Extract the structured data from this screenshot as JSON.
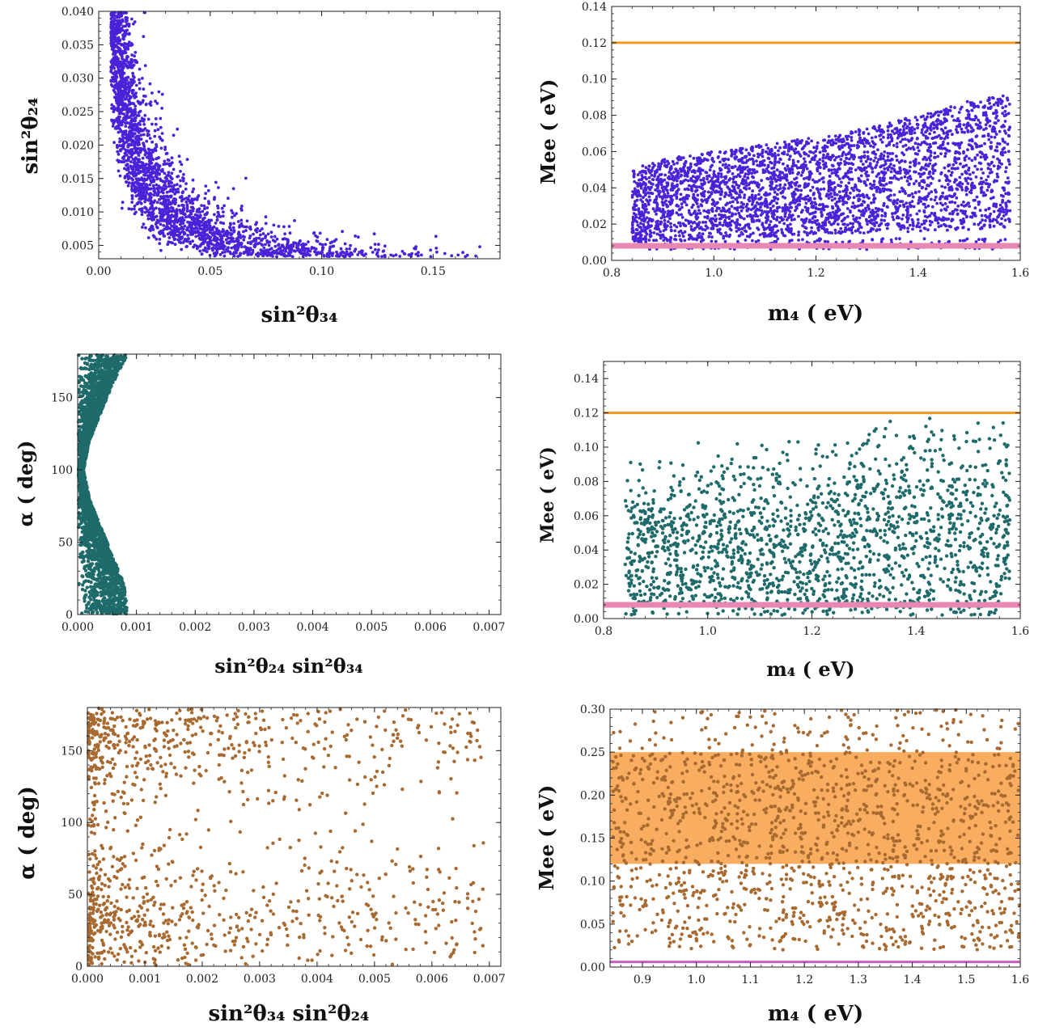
{
  "colors": {
    "blue": "#4a22d8",
    "teal": "#1f6b6b",
    "brown": "#a86a30",
    "orange": "#f39a22",
    "orange_band": "#f8ad60",
    "pink": "#e987b3",
    "magenta": "#c75cc3"
  },
  "chart_data": [
    {
      "type": "scatter",
      "title": "",
      "xlabel": "sin²θ₃₄",
      "ylabel": "sin²θ₂₄",
      "xlim": [
        0,
        0.18
      ],
      "ylim": [
        0.003,
        0.04
      ],
      "xticks": [
        0,
        0.05,
        0.1,
        0.15
      ],
      "xtick_labels": [
        "0.00",
        "0.05",
        "0.10",
        "0.15"
      ],
      "yticks": [
        0.005,
        0.01,
        0.015,
        0.02,
        0.025,
        0.03,
        0.035,
        0.04
      ],
      "ytick_labels": [
        "0.005",
        "0.010",
        "0.015",
        "0.020",
        "0.025",
        "0.030",
        "0.035",
        "0.040"
      ],
      "grid": false,
      "point_color": "#4a22d8",
      "n_points": 3800,
      "trend": "hyperbola: sin²θ₂₄ × sin²θ₃₄ ≈ 0.0002–0.0008, from (0.005, 0.04) down to (0.18, 0.004)",
      "x": [
        0.008,
        0.01,
        0.012,
        0.015,
        0.02,
        0.025,
        0.03,
        0.04,
        0.05,
        0.06,
        0.08,
        0.1,
        0.12,
        0.15,
        0.17
      ],
      "y": [
        0.038,
        0.033,
        0.028,
        0.024,
        0.02,
        0.017,
        0.014,
        0.011,
        0.009,
        0.008,
        0.006,
        0.0055,
        0.005,
        0.0045,
        0.004
      ]
    },
    {
      "type": "scatter",
      "title": "",
      "xlabel": "m₄ ( eV)",
      "ylabel": "Mee ( eV)",
      "xlim": [
        0.8,
        1.6
      ],
      "ylim": [
        0,
        0.14
      ],
      "xticks": [
        0.8,
        1.0,
        1.2,
        1.4,
        1.6
      ],
      "xtick_labels": [
        "0.8",
        "1.0",
        "1.2",
        "1.4",
        "1.6"
      ],
      "yticks": [
        0,
        0.02,
        0.04,
        0.06,
        0.08,
        0.1,
        0.12,
        0.14
      ],
      "ytick_labels": [
        "0.00",
        "0.02",
        "0.04",
        "0.06",
        "0.08",
        "0.10",
        "0.12",
        "0.14"
      ],
      "grid": false,
      "point_color": "#4a22d8",
      "n_points": 3500,
      "hlines": [
        {
          "y": 0.12,
          "color": "#f39a22"
        },
        {
          "y": 0.008,
          "color": "#e987b3"
        }
      ],
      "trend": "filled wedge from m4 = 0.84 to 1.58; lower edge ≈ 0.01–0.02, upper edge rising from 0.05 to 0.09",
      "x": [
        0.84,
        0.9,
        1.0,
        1.1,
        1.2,
        1.3,
        1.4,
        1.5,
        1.58
      ],
      "y_max": [
        0.05,
        0.056,
        0.06,
        0.064,
        0.068,
        0.073,
        0.08,
        0.088,
        0.092
      ],
      "y_min": [
        0.01,
        0.01,
        0.012,
        0.013,
        0.014,
        0.015,
        0.016,
        0.017,
        0.018
      ]
    },
    {
      "type": "scatter",
      "title": "",
      "xlabel": "sin²θ₂₄ sin²θ₃₄",
      "ylabel": "α ( deg)",
      "xlim": [
        0,
        0.0072
      ],
      "ylim": [
        0,
        180
      ],
      "xticks": [
        0,
        0.001,
        0.002,
        0.003,
        0.004,
        0.005,
        0.006,
        0.007
      ],
      "xtick_labels": [
        "0.000",
        "0.001",
        "0.002",
        "0.003",
        "0.004",
        "0.005",
        "0.006",
        "0.007"
      ],
      "yticks": [
        0,
        50,
        100,
        150
      ],
      "ytick_labels": [
        "0",
        "50",
        "100",
        "150"
      ],
      "grid": false,
      "point_color": "#1f6b6b",
      "n_points": 2800,
      "trend": "narrow band near x = 0; max x ≈ 0.0009 at α = 0 and 180, min x ≈ 0.00005 near α = 100",
      "alpha": [
        0,
        20,
        40,
        60,
        80,
        100,
        120,
        140,
        160,
        180
      ],
      "x_max": [
        0.00085,
        0.0008,
        0.0006,
        0.0004,
        0.0002,
        0.0001,
        0.0002,
        0.0004,
        0.0006,
        0.00085
      ]
    },
    {
      "type": "scatter",
      "title": "",
      "xlabel": "m₄ ( eV)",
      "ylabel": "Mee ( eV)",
      "xlim": [
        0.8,
        1.6
      ],
      "ylim": [
        0,
        0.15
      ],
      "xticks": [
        0.8,
        1.0,
        1.2,
        1.4,
        1.6
      ],
      "xtick_labels": [
        "0.8",
        "1.0",
        "1.2",
        "1.4",
        "1.6"
      ],
      "yticks": [
        0,
        0.02,
        0.04,
        0.06,
        0.08,
        0.1,
        0.12,
        0.14
      ],
      "ytick_labels": [
        "0.00",
        "0.02",
        "0.04",
        "0.06",
        "0.08",
        "0.10",
        "0.12",
        "0.14"
      ],
      "grid": false,
      "point_color": "#1f6b6b",
      "n_points": 1800,
      "hlines": [
        {
          "y": 0.12,
          "color": "#f39a22"
        },
        {
          "y": 0.008,
          "color": "#e987b3"
        }
      ],
      "trend": "points spread from m4 = 0.84 to 1.58; upper edge rises from about 0.095 to 0.125",
      "x": [
        0.84,
        1.0,
        1.2,
        1.4,
        1.58
      ],
      "y_max": [
        0.095,
        0.105,
        0.11,
        0.12,
        0.125
      ],
      "y_min": [
        0.002,
        0.002,
        0.002,
        0.002,
        0.002
      ]
    },
    {
      "type": "scatter",
      "title": "",
      "xlabel": "sin²θ₃₄ sin²θ₂₄",
      "ylabel": "α ( deg)",
      "xlim": [
        0,
        0.0072
      ],
      "ylim": [
        0,
        180
      ],
      "xticks": [
        0,
        0.001,
        0.002,
        0.003,
        0.004,
        0.005,
        0.006,
        0.007
      ],
      "xtick_labels": [
        "0.000",
        "0.001",
        "0.002",
        "0.003",
        "0.004",
        "0.005",
        "0.006",
        "0.007"
      ],
      "yticks": [
        0,
        50,
        100,
        150
      ],
      "ytick_labels": [
        "0",
        "50",
        "100",
        "150"
      ],
      "grid": false,
      "point_color": "#a86a30",
      "n_points": 1300,
      "trend": "dense near x = 0 around α ≈ 30 and α ≈ 165, thinning to x ≈ 0.0068"
    },
    {
      "type": "scatter",
      "title": "",
      "xlabel": "m₄ ( eV)",
      "ylabel": "Mee ( eV)",
      "xlim": [
        0.84,
        1.6
      ],
      "ylim": [
        0,
        0.3
      ],
      "xticks": [
        0.9,
        1.0,
        1.1,
        1.2,
        1.3,
        1.4,
        1.5,
        1.6
      ],
      "xtick_labels": [
        "0.9",
        "1.0",
        "1.1",
        "1.2",
        "1.3",
        "1.4",
        "1.5",
        "1.6"
      ],
      "yticks": [
        0,
        0.05,
        0.1,
        0.15,
        0.2,
        0.25,
        0.3
      ],
      "ytick_labels": [
        "0.00",
        "0.05",
        "0.10",
        "0.15",
        "0.20",
        "0.25",
        "0.30"
      ],
      "grid": false,
      "point_color": "#a86a30",
      "n_points": 1500,
      "bands": [
        {
          "y0": 0.12,
          "y1": 0.25,
          "color": "#f8ad60"
        }
      ],
      "hlines": [
        {
          "y": 0.006,
          "color": "#c75cc3"
        }
      ],
      "trend": "points spread uniformly over m4 = 0.84–1.6, Mee ≈ 0.01–0.30, densest between 0.03 and 0.25"
    }
  ]
}
